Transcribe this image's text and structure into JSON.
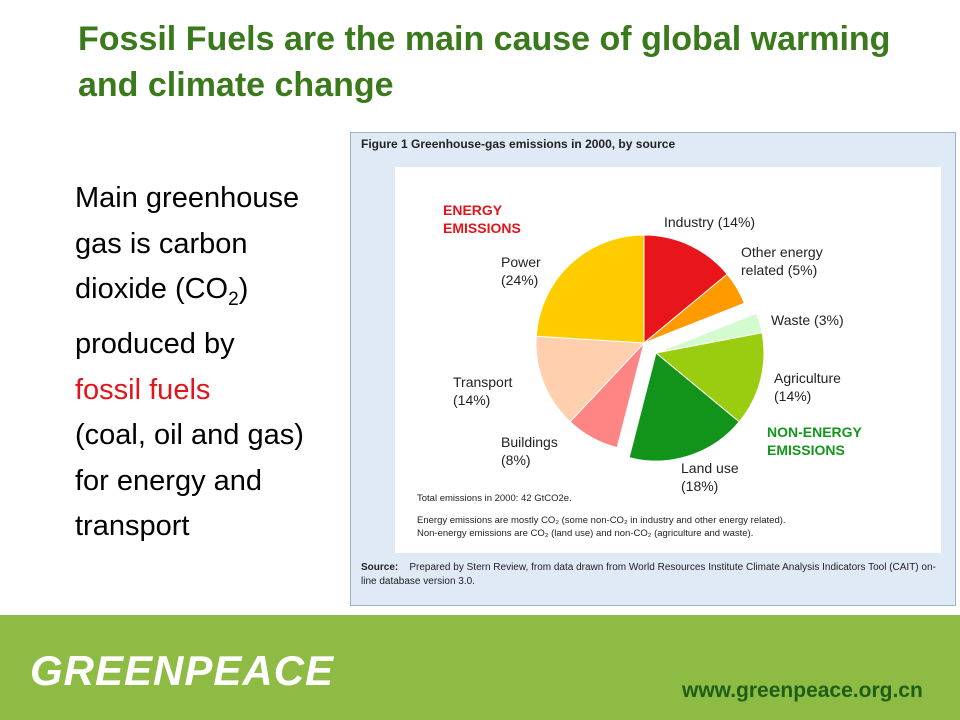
{
  "header": {
    "title": "Fossil Fuels are the main cause of global warming and climate change"
  },
  "body": {
    "text_before": "Main greenhouse gas is carbon dioxide (CO",
    "subscript": "2",
    "text_after": ") produced by",
    "highlight": "fossil fuels",
    "text_end": "(coal, oil and gas) for energy and transport"
  },
  "figure": {
    "caption": "Figure 1 Greenhouse-gas emissions in 2000, by source",
    "energy_label": "ENERGY EMISSIONS",
    "non_energy_label": "NON-ENERGY EMISSIONS",
    "notes": [
      "Total emissions in 2000: 42 GtCO2e.",
      "Energy emissions are mostly CO₂ (some non-CO₂ in industry and other energy related).",
      "Non-energy emissions are CO₂ (land use) and non-CO₂ (agriculture and waste)."
    ],
    "source_label": "Source:",
    "source_text": "Prepared by Stern Review, from data drawn from World Resources Institute Climate Analysis Indicators Tool (CAIT) on-line database version 3.0."
  },
  "chart_data": {
    "type": "pie",
    "categories": [
      "Industry",
      "Other energy related",
      "Waste",
      "Agriculture",
      "Land use",
      "Buildings",
      "Transport",
      "Power"
    ],
    "values": [
      14,
      5,
      3,
      14,
      18,
      8,
      14,
      24
    ],
    "value_labels": [
      "(14%)",
      "(5%)",
      "(3%)",
      "(14%)",
      "(18%)",
      "(8%)",
      "(14%)",
      "(24%)"
    ],
    "colors": [
      "#e8161b",
      "#ff9a00",
      "#d4fbd0",
      "#9acd10",
      "#12931a",
      "#ff8585",
      "#ffcfae",
      "#ffcc00"
    ]
  },
  "footer": {
    "logo": "GREENPEACE",
    "url": "www.greenpeace.org.cn"
  }
}
